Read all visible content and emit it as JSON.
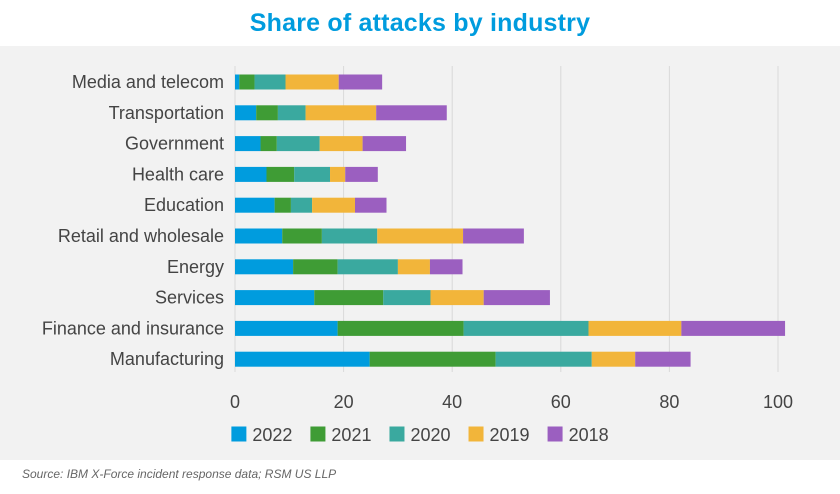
{
  "colors": {
    "title": "#009cde",
    "background": "#f2f2f2",
    "grid": "#d9d9d9",
    "text": "#444444"
  },
  "source_note": "Source: IBM X-Force incident response data; RSM US LLP",
  "chart_data": {
    "type": "bar",
    "orientation": "horizontal",
    "stacked": true,
    "title": "Share of attacks by industry",
    "categories": [
      "Media and telecom",
      "Transportation",
      "Government",
      "Health care",
      "Education",
      "Retail and wholesale",
      "Energy",
      "Services",
      "Finance and insurance",
      "Manufacturing"
    ],
    "series": [
      {
        "name": "2022",
        "color": "#009cde",
        "values": [
          0.8,
          3.9,
          4.7,
          5.8,
          7.3,
          8.7,
          10.7,
          14.6,
          18.9,
          24.8
        ]
      },
      {
        "name": "2021",
        "color": "#3f9c35",
        "values": [
          2.8,
          4.0,
          3.0,
          5.1,
          3.0,
          7.3,
          8.2,
          12.7,
          23.2,
          23.2
        ]
      },
      {
        "name": "2020",
        "color": "#3aa99f",
        "values": [
          5.7,
          5.1,
          7.9,
          6.6,
          3.9,
          10.2,
          11.1,
          8.7,
          23.0,
          17.7
        ]
      },
      {
        "name": "2019",
        "color": "#f2b53a",
        "values": [
          9.8,
          13.0,
          7.9,
          2.8,
          7.9,
          15.8,
          5.9,
          9.8,
          17.1,
          8.0
        ]
      },
      {
        "name": "2018",
        "color": "#9b5fc0",
        "values": [
          8.0,
          13.0,
          8.0,
          6.0,
          5.8,
          11.2,
          6.0,
          12.2,
          19.1,
          10.2
        ]
      }
    ],
    "xlim": [
      0,
      100
    ],
    "xticks": [
      0,
      20,
      40,
      60,
      80,
      100
    ],
    "xlabel": "",
    "ylabel": "",
    "grid": "vertical",
    "legend_position": "bottom"
  }
}
